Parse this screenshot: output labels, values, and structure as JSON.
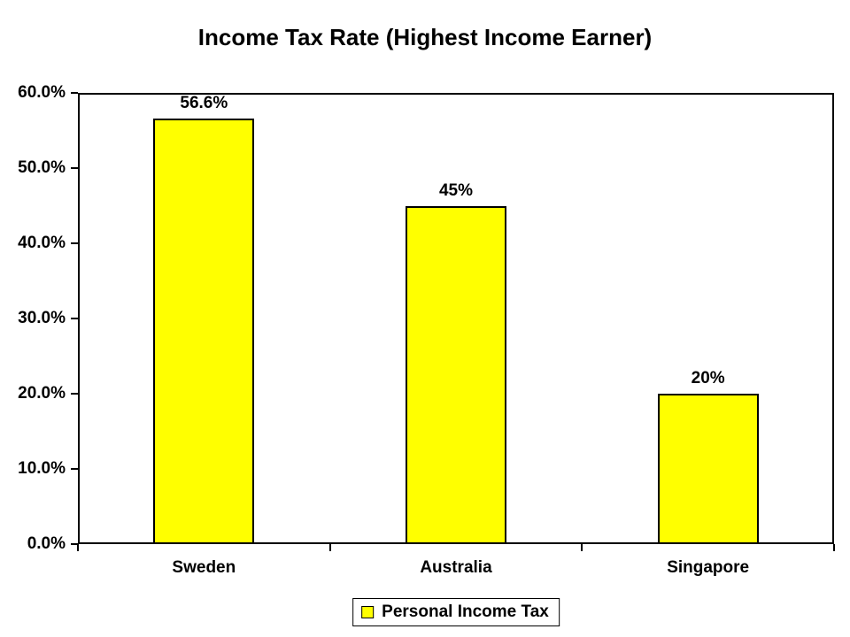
{
  "title": "Income Tax Rate (Highest Income Earner)",
  "legend": {
    "label": "Personal Income Tax",
    "swatch_color": "#FFFF00"
  },
  "chart_data": {
    "type": "bar",
    "title": "Income Tax Rate (Highest Income Earner)",
    "categories": [
      "Sweden",
      "Australia",
      "Singapore"
    ],
    "series": [
      {
        "name": "Personal Income Tax",
        "values": [
          56.6,
          45,
          20
        ],
        "color": "#FFFF00"
      }
    ],
    "data_labels": [
      "56.6%",
      "45%",
      "20%"
    ],
    "xlabel": "",
    "ylabel": "",
    "ylim": [
      0,
      60
    ],
    "y_ticks": [
      0,
      10,
      20,
      30,
      40,
      50,
      60
    ],
    "y_tick_labels": [
      "0.0%",
      "10.0%",
      "20.0%",
      "30.0%",
      "40.0%",
      "50.0%",
      "60.0%"
    ],
    "grid": false,
    "plot_background": "#FFFFFF",
    "bar_border_color": "#000000",
    "legend_position": "bottom-center"
  }
}
